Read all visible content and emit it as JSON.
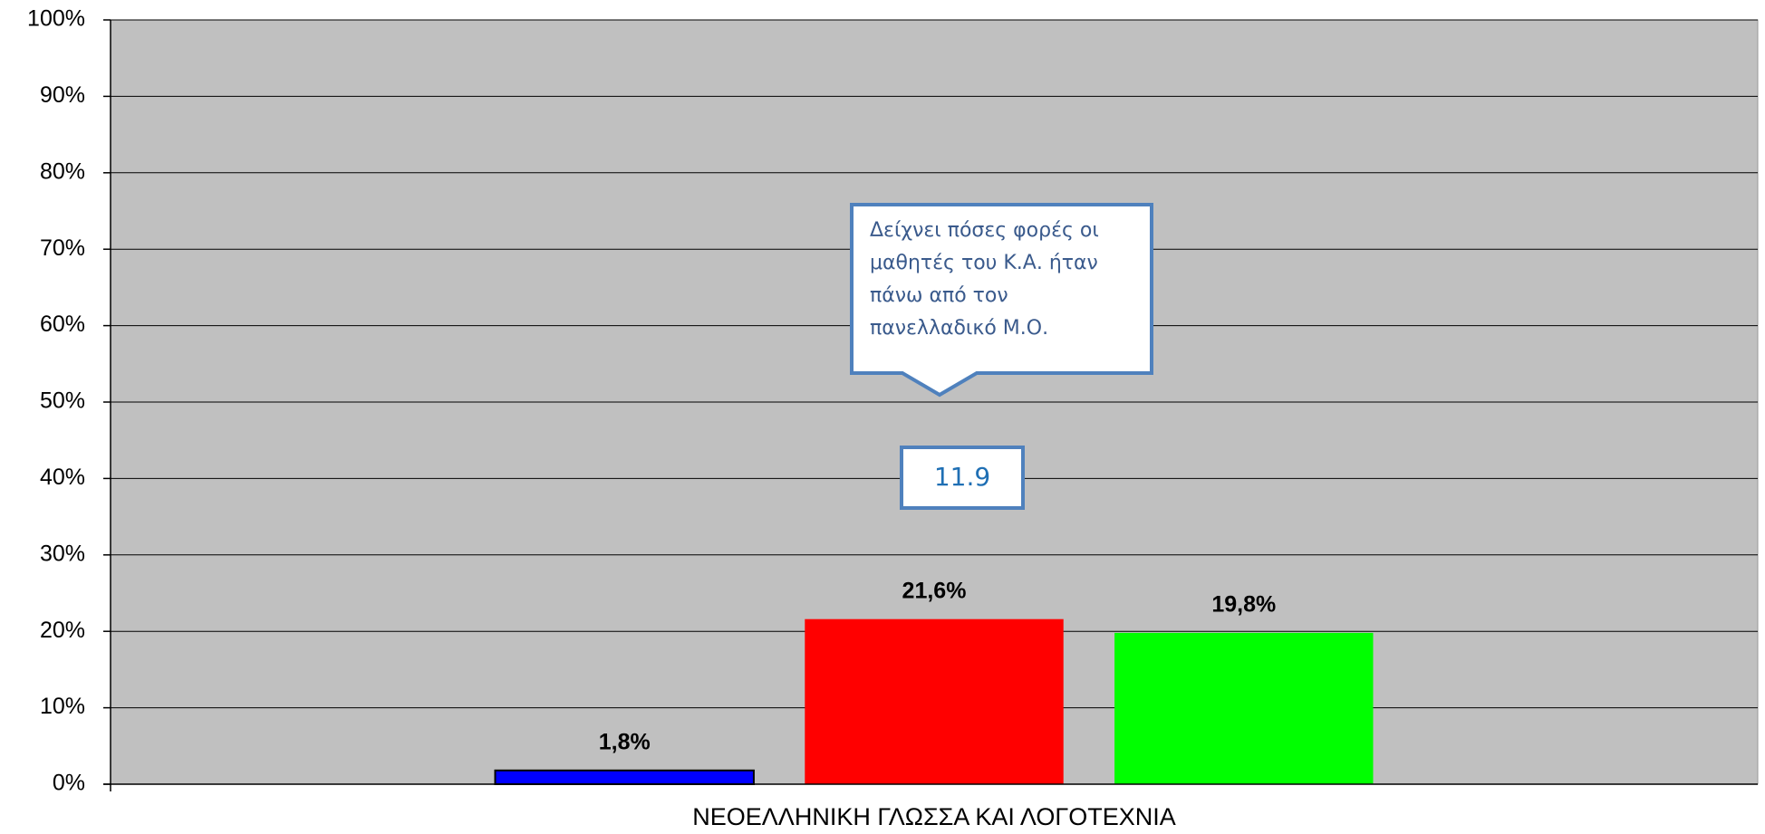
{
  "chart_data": {
    "type": "bar",
    "categories": [
      "ΝΕΟΕΛΛΗΝΙΚΗ ΓΛΩΣΣΑ ΚΑΙ ΛΟΓΟΤΕΧΝΙΑ"
    ],
    "series": [
      {
        "color": "#0000ff",
        "values": [
          1.8
        ],
        "value_labels": [
          "1,8%"
        ]
      },
      {
        "color": "#ff0000",
        "values": [
          21.6
        ],
        "value_labels": [
          "21,6%"
        ]
      },
      {
        "color": "#00ff00",
        "values": [
          19.8
        ],
        "value_labels": [
          "19,8%"
        ]
      }
    ],
    "ylim": [
      0,
      100
    ],
    "yticks": [
      {
        "value": 0,
        "label": "0%"
      },
      {
        "value": 10,
        "label": "10%"
      },
      {
        "value": 20,
        "label": "20%"
      },
      {
        "value": 30,
        "label": "30%"
      },
      {
        "value": 40,
        "label": "40%"
      },
      {
        "value": 50,
        "label": "50%"
      },
      {
        "value": 60,
        "label": "60%"
      },
      {
        "value": 70,
        "label": "70%"
      },
      {
        "value": 80,
        "label": "80%"
      },
      {
        "value": 90,
        "label": "90%"
      },
      {
        "value": 100,
        "label": "100%"
      }
    ],
    "grid": true,
    "annotations": [
      {
        "text": [
          "Δείχνει πόσες φορές οι",
          "μαθητές του Κ.Α. ήταν",
          "πάνω από τον",
          "πανελλαδικό Μ.Ο."
        ]
      },
      {
        "text": "11.9"
      }
    ]
  }
}
